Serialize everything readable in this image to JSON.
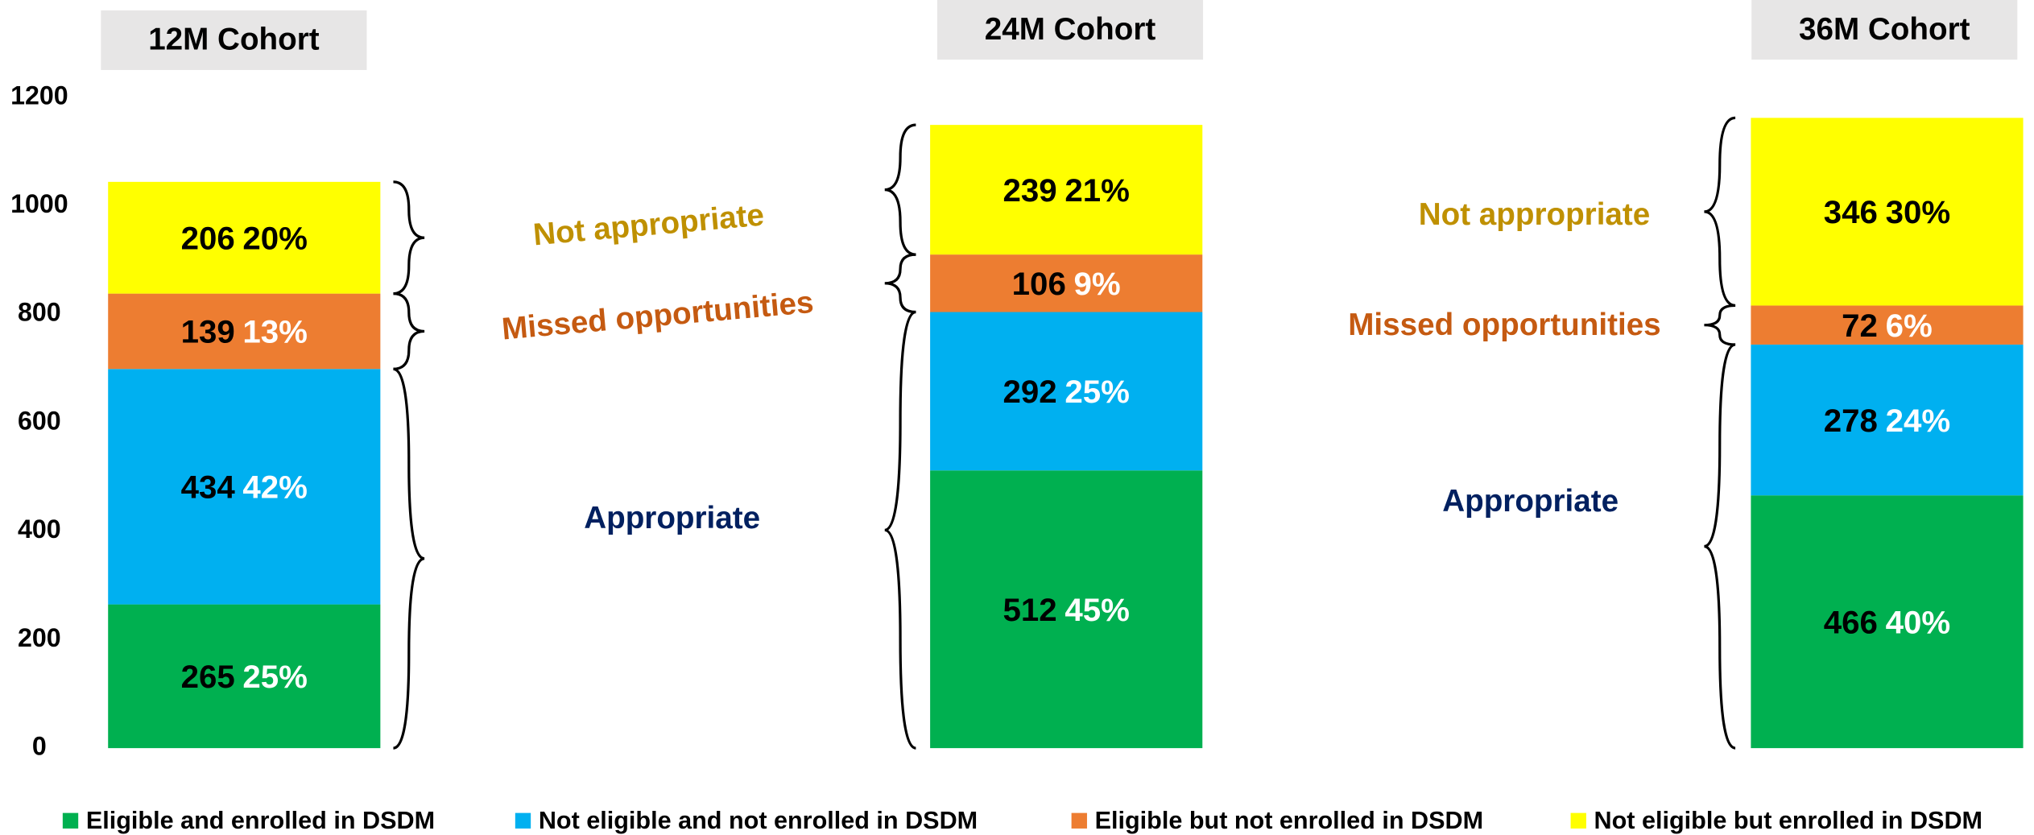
{
  "chart_data": [
    {
      "type": "bar",
      "stacked": true,
      "title": "12M Cohort",
      "ylim": [
        0,
        1200
      ],
      "yticks": [
        0,
        200,
        400,
        600,
        800,
        1000,
        1200
      ],
      "series": [
        {
          "name": "Eligible and enrolled in DSDM",
          "color": "#00b050",
          "label_color": "#ffffff",
          "values": [
            265
          ],
          "shares": [
            25
          ],
          "share_labels": [
            "25%"
          ]
        },
        {
          "name": "Not eligible and not enrolled in DSDM",
          "color": "#00b0f0",
          "label_color": "#ffffff",
          "values": [
            434
          ],
          "shares": [
            42
          ],
          "share_labels": [
            "42%"
          ]
        },
        {
          "name": "Eligible but not enrolled in DSDM",
          "color": "#ed7d31",
          "label_color": "#ffffff",
          "values": [
            139
          ],
          "shares": [
            13
          ],
          "share_labels": [
            "13%"
          ]
        },
        {
          "name": "Not eligible but enrolled in DSDM",
          "color": "#ffff00",
          "label_color": "#000000",
          "values": [
            206
          ],
          "shares": [
            20
          ],
          "share_labels": [
            "20%"
          ]
        }
      ],
      "annotations": [
        "Not appropriate",
        "Missed opportunities",
        "Appropriate"
      ]
    },
    {
      "type": "bar",
      "stacked": true,
      "title": "24M Cohort",
      "ylim": [
        0,
        1200
      ],
      "series": [
        {
          "name": "Eligible and enrolled in DSDM",
          "color": "#00b050",
          "label_color": "#ffffff",
          "values": [
            512
          ],
          "shares": [
            45
          ],
          "share_labels": [
            "45%"
          ]
        },
        {
          "name": "Not eligible and not enrolled in DSDM",
          "color": "#00b0f0",
          "label_color": "#ffffff",
          "values": [
            292
          ],
          "shares": [
            25
          ],
          "share_labels": [
            "25%"
          ]
        },
        {
          "name": "Eligible but not enrolled in DSDM",
          "color": "#ed7d31",
          "label_color": "#ffffff",
          "values": [
            106
          ],
          "shares": [
            9
          ],
          "share_labels": [
            "9%"
          ]
        },
        {
          "name": "Not eligible but enrolled in DSDM",
          "color": "#ffff00",
          "label_color": "#000000",
          "values": [
            239
          ],
          "shares": [
            21
          ],
          "share_labels": [
            "21%"
          ]
        }
      ]
    },
    {
      "type": "bar",
      "stacked": true,
      "title": "36M Cohort",
      "ylim": [
        0,
        1200
      ],
      "series": [
        {
          "name": "Eligible and enrolled in DSDM",
          "color": "#00b050",
          "label_color": "#ffffff",
          "values": [
            466
          ],
          "shares": [
            40
          ],
          "share_labels": [
            "40%"
          ]
        },
        {
          "name": "Not eligible and not enrolled in DSDM",
          "color": "#00b0f0",
          "label_color": "#ffffff",
          "values": [
            278
          ],
          "shares": [
            24
          ],
          "share_labels": [
            "24%"
          ]
        },
        {
          "name": "Eligible but not enrolled in DSDM",
          "color": "#ed7d31",
          "label_color": "#ffffff",
          "values": [
            72
          ],
          "shares": [
            6
          ],
          "share_labels": [
            "6%"
          ]
        },
        {
          "name": "Not eligible but enrolled in DSDM",
          "color": "#ffff00",
          "label_color": "#000000",
          "values": [
            346
          ],
          "shares": [
            30
          ],
          "share_labels": [
            "30%"
          ]
        }
      ],
      "annotations": [
        "Not appropriate",
        "Missed opportunities",
        "Appropriate"
      ]
    }
  ]
}
